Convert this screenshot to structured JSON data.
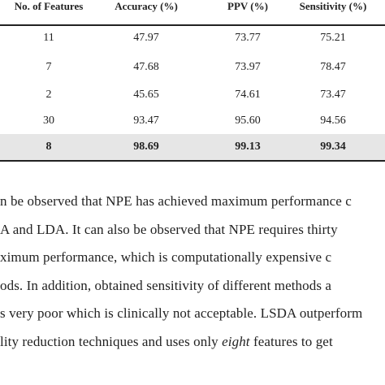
{
  "table": {
    "headers": [
      "No. of Features",
      "Accuracy (%)",
      "PPV (%)",
      "Sensitivity (%)"
    ],
    "rows": [
      [
        "11",
        "47.97",
        "73.77",
        "75.21"
      ],
      [
        "7",
        "47.68",
        "73.97",
        "78.47"
      ],
      [
        "2",
        "45.65",
        "74.61",
        "73.47"
      ],
      [
        "30",
        "93.47",
        "95.60",
        "94.56"
      ],
      [
        "8",
        "98.69",
        "99.13",
        "99.34"
      ]
    ]
  },
  "paragraph": {
    "lines": [
      "n be observed that NPE has achieved maximum performance c",
      "A and LDA. It can also be observed that NPE requires thirty",
      "ximum performance, which is computationally expensive c",
      "ods. In addition, obtained sensitivity of different methods a",
      "s very poor which is clinically not acceptable. LSDA outperform",
      {
        "before": "lity reduction techniques and uses only ",
        "emphasis": "eight",
        "after": " features to get"
      }
    ]
  }
}
